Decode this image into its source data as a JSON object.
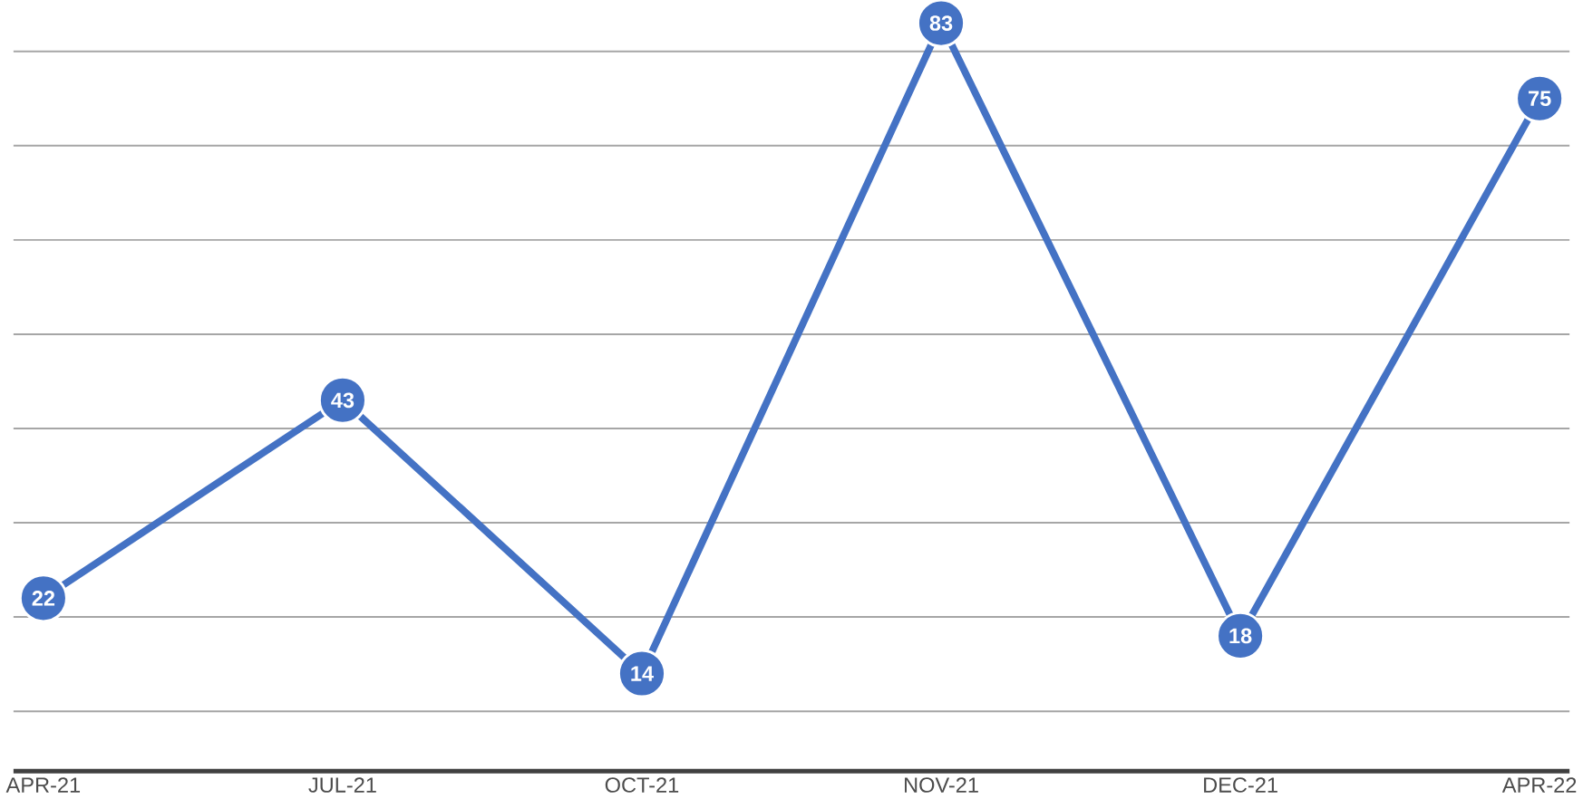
{
  "chart_data": {
    "type": "line",
    "categories": [
      "APR-21",
      "JUL-21",
      "OCT-21",
      "NOV-21",
      "DEC-21",
      "APR-22"
    ],
    "values": [
      22,
      43,
      14,
      83,
      18,
      75
    ],
    "color": "#4472c4",
    "tick_labels": "x",
    "grid": "y",
    "marker": "circle",
    "line_style": "solid",
    "data_labels": true
  }
}
